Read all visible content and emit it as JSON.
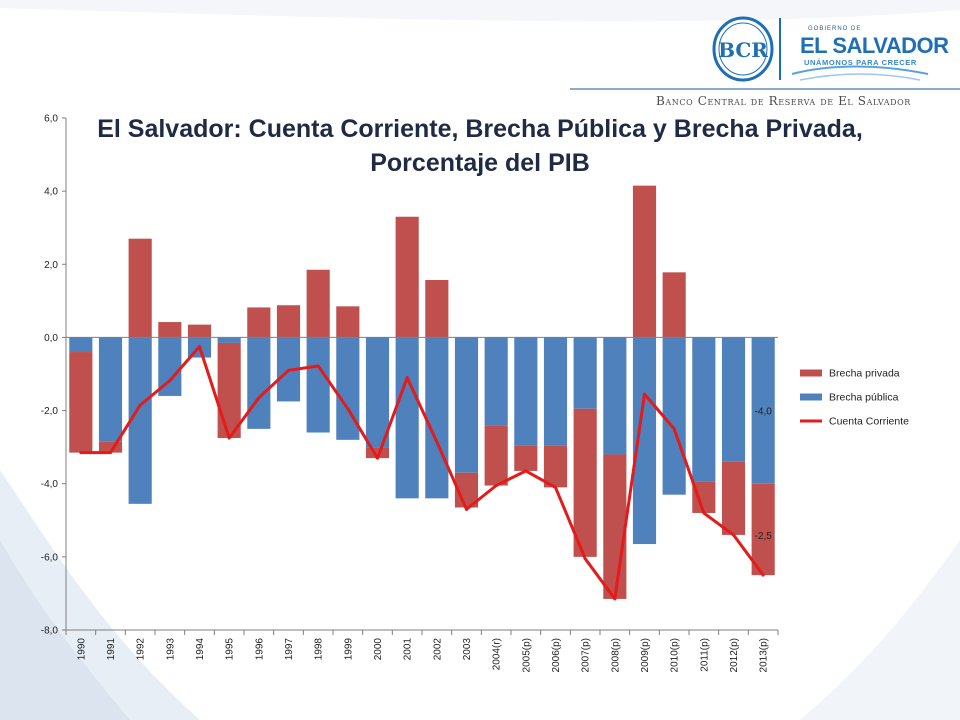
{
  "header": {
    "gov_small": "GOBIERNO DE",
    "gov_name": "EL SALVADOR",
    "gov_tagline": "UNÁMONOS PARA CRECER",
    "bank_name": "Banco Central de Reserva de El Salvador",
    "logo_text": "BCR"
  },
  "colors": {
    "brecha_privada": "#c0504d",
    "brecha_publica": "#4f81bd",
    "cuenta_corriente": "#e31b1b"
  },
  "chart_data": {
    "type": "bar",
    "title": "El Salvador: Cuenta Corriente, Brecha Pública y Brecha Privada, Porcentaje del PIB",
    "title_lines": [
      "El Salvador: Cuenta Corriente, Brecha Pública y Brecha Privada,",
      "Porcentaje del PIB"
    ],
    "xlabel": "",
    "ylabel": "",
    "ylim": [
      -8,
      6
    ],
    "yticks": [
      -8,
      -6,
      -4,
      -2,
      0,
      2,
      4,
      6
    ],
    "ytick_labels": [
      "-8,0",
      "-6,0",
      "-4,0",
      "-2,0",
      "0,0",
      "2,0",
      "4,0",
      "6,0"
    ],
    "categories": [
      "1990",
      "1991",
      "1992",
      "1993",
      "1994",
      "1995",
      "1996",
      "1997",
      "1998",
      "1999",
      "2000",
      "2001",
      "2002",
      "2003",
      "2004(r)",
      "2005(p)",
      "2006(p)",
      "2007(p)",
      "2008(p)",
      "2009(p)",
      "2010(p)",
      "2011(p)",
      "2012(p)",
      "2013(p)"
    ],
    "stacked": true,
    "series": [
      {
        "name": "Brecha pública",
        "kind": "bar",
        "values": [
          -0.4,
          -2.85,
          -4.55,
          -1.6,
          -0.55,
          -0.15,
          -2.5,
          -1.75,
          -2.6,
          -2.8,
          -3.0,
          -4.4,
          -4.4,
          -3.7,
          -2.4,
          -2.95,
          -2.95,
          -1.95,
          -3.2,
          -5.65,
          -4.3,
          -3.95,
          -3.4,
          -4.0
        ]
      },
      {
        "name": "Brecha privada",
        "kind": "bar",
        "values": [
          -2.75,
          -0.3,
          2.7,
          0.42,
          0.35,
          -2.6,
          0.82,
          0.88,
          1.85,
          0.85,
          -0.3,
          3.3,
          1.57,
          -0.95,
          -1.65,
          -0.7,
          -1.15,
          -4.05,
          -3.95,
          4.15,
          1.78,
          -0.85,
          -2.0,
          -2.5
        ]
      },
      {
        "name": "Cuenta Corriente",
        "kind": "line",
        "values": [
          -3.15,
          -3.15,
          -1.85,
          -1.18,
          -0.25,
          -2.75,
          -1.65,
          -0.9,
          -0.78,
          -1.95,
          -3.3,
          -1.1,
          -2.85,
          -4.7,
          -4.05,
          -3.65,
          -4.1,
          -6.05,
          -7.15,
          -1.55,
          -2.5,
          -4.8,
          -5.4,
          -6.5
        ]
      }
    ],
    "legend": {
      "position": "right",
      "entries": [
        "Brecha privada",
        "Brecha pública",
        "Cuenta Corriente"
      ]
    },
    "annotations": [
      {
        "text": "-4,0",
        "x_category": "2013(p)",
        "y": -2.0
      },
      {
        "text": "-2,5",
        "x_category": "2013(p)",
        "y": -5.4
      }
    ],
    "grid": false
  }
}
